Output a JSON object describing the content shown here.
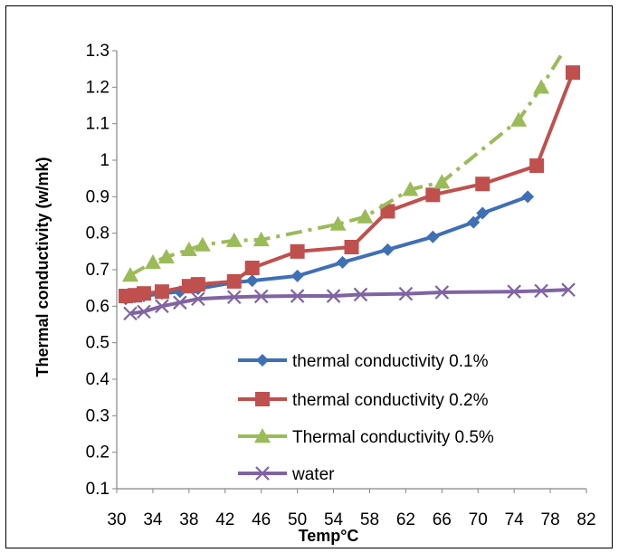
{
  "chart_data": {
    "type": "line",
    "title": "",
    "xlabel": "Temp°C",
    "ylabel": "Thermal conductivity (w/mk)",
    "xlim": [
      30,
      82
    ],
    "ylim": [
      0.1,
      1.3
    ],
    "x_ticks": [
      "30",
      "34",
      "38",
      "42",
      "46",
      "50",
      "54",
      "58",
      "62",
      "66",
      "70",
      "74",
      "78",
      "82"
    ],
    "y_ticks": [
      "0.1",
      "0.2",
      "0.3",
      "0.4",
      "0.5",
      "0.6",
      "0.7",
      "0.8",
      "0.9",
      "1",
      "1.1",
      "1.2",
      "1.3"
    ],
    "grid": false,
    "legend_position": "lower-right-inside",
    "series": [
      {
        "name": "thermal conductivity 0.1%",
        "color": "#3f6fb5",
        "marker": "diamond",
        "line": "solid",
        "x": [
          31,
          32,
          33,
          35,
          37,
          39,
          43,
          45,
          50,
          55,
          60,
          65,
          69.5,
          70.5,
          75.5
        ],
        "y": [
          0.62,
          0.625,
          0.628,
          0.635,
          0.64,
          0.648,
          0.665,
          0.67,
          0.683,
          0.72,
          0.755,
          0.79,
          0.83,
          0.855,
          0.9
        ]
      },
      {
        "name": "thermal conductivity 0.2%",
        "color": "#c0504d",
        "marker": "square",
        "line": "solid",
        "x": [
          31,
          32,
          33,
          35,
          38,
          39,
          43,
          45,
          50,
          56,
          60,
          65,
          70.5,
          76.5,
          80.5
        ],
        "y": [
          0.628,
          0.63,
          0.635,
          0.64,
          0.655,
          0.66,
          0.668,
          0.705,
          0.75,
          0.762,
          0.86,
          0.905,
          0.935,
          0.985,
          1.24
        ]
      },
      {
        "name": "Thermal conductivity 0.5%",
        "color": "#9bbb59",
        "marker": "triangle",
        "line": "dashdot",
        "x": [
          31.5,
          34,
          35.5,
          38,
          39.5,
          43,
          46,
          54.5,
          57.5,
          62.5,
          66,
          74.5,
          77,
          79.5
        ],
        "y": [
          0.685,
          0.72,
          0.735,
          0.755,
          0.768,
          0.78,
          0.782,
          0.825,
          0.845,
          0.92,
          0.94,
          1.11,
          1.2,
          1.3
        ]
      },
      {
        "name": "water",
        "color": "#8064a2",
        "marker": "x",
        "line": "solid",
        "x": [
          31.5,
          33,
          35,
          37,
          39,
          43,
          46,
          50,
          54,
          57,
          62,
          66,
          74,
          77,
          80
        ],
        "y": [
          0.58,
          0.585,
          0.6,
          0.61,
          0.62,
          0.625,
          0.627,
          0.628,
          0.628,
          0.632,
          0.634,
          0.638,
          0.64,
          0.642,
          0.645
        ]
      }
    ]
  }
}
